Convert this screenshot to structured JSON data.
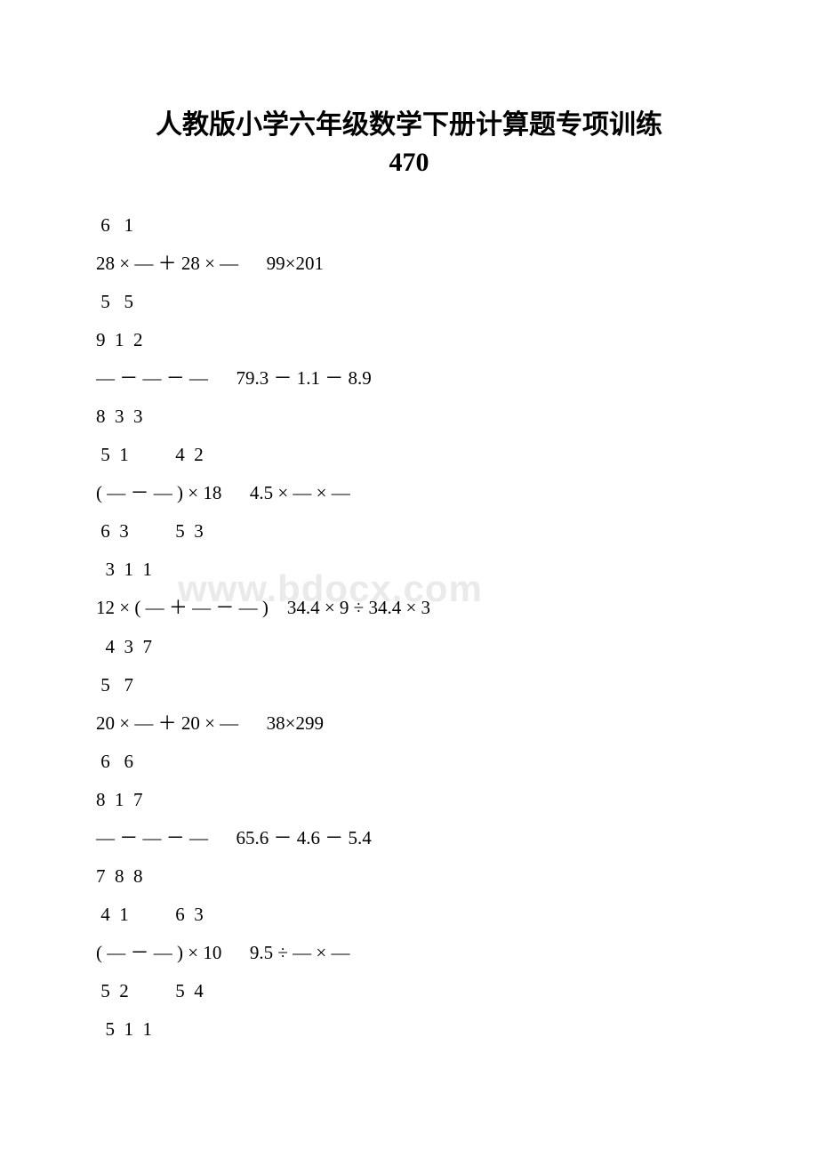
{
  "title_line1": "人教版小学六年级数学下册计算题专项训练",
  "title_line2": "470",
  "watermark": "www.bdocx.com",
  "lines": [
    " 6   1",
    "28 × — ＋ 28 × —      99×201",
    " 5   5",
    "9  1  2",
    "— － — － —      79.3 － 1.1 － 8.9",
    "8  3  3",
    " 5  1          4  2",
    "( — － — ) × 18      4.5 × — × —",
    " 6  3          5  3",
    "  3  1  1",
    "12 × ( — ＋ — － — )    34.4 × 9 ÷ 34.4 × 3",
    "  4  3  7",
    " 5   7",
    "20 × — ＋ 20 × —      38×299",
    " 6   6",
    "8  1  7",
    "— － — － —      65.6 － 4.6 － 5.4",
    "7  8  8",
    " 4  1          6  3",
    "( — － — ) × 10      9.5 ÷ — × —",
    " 5  2          5  4",
    "  5  1  1"
  ]
}
